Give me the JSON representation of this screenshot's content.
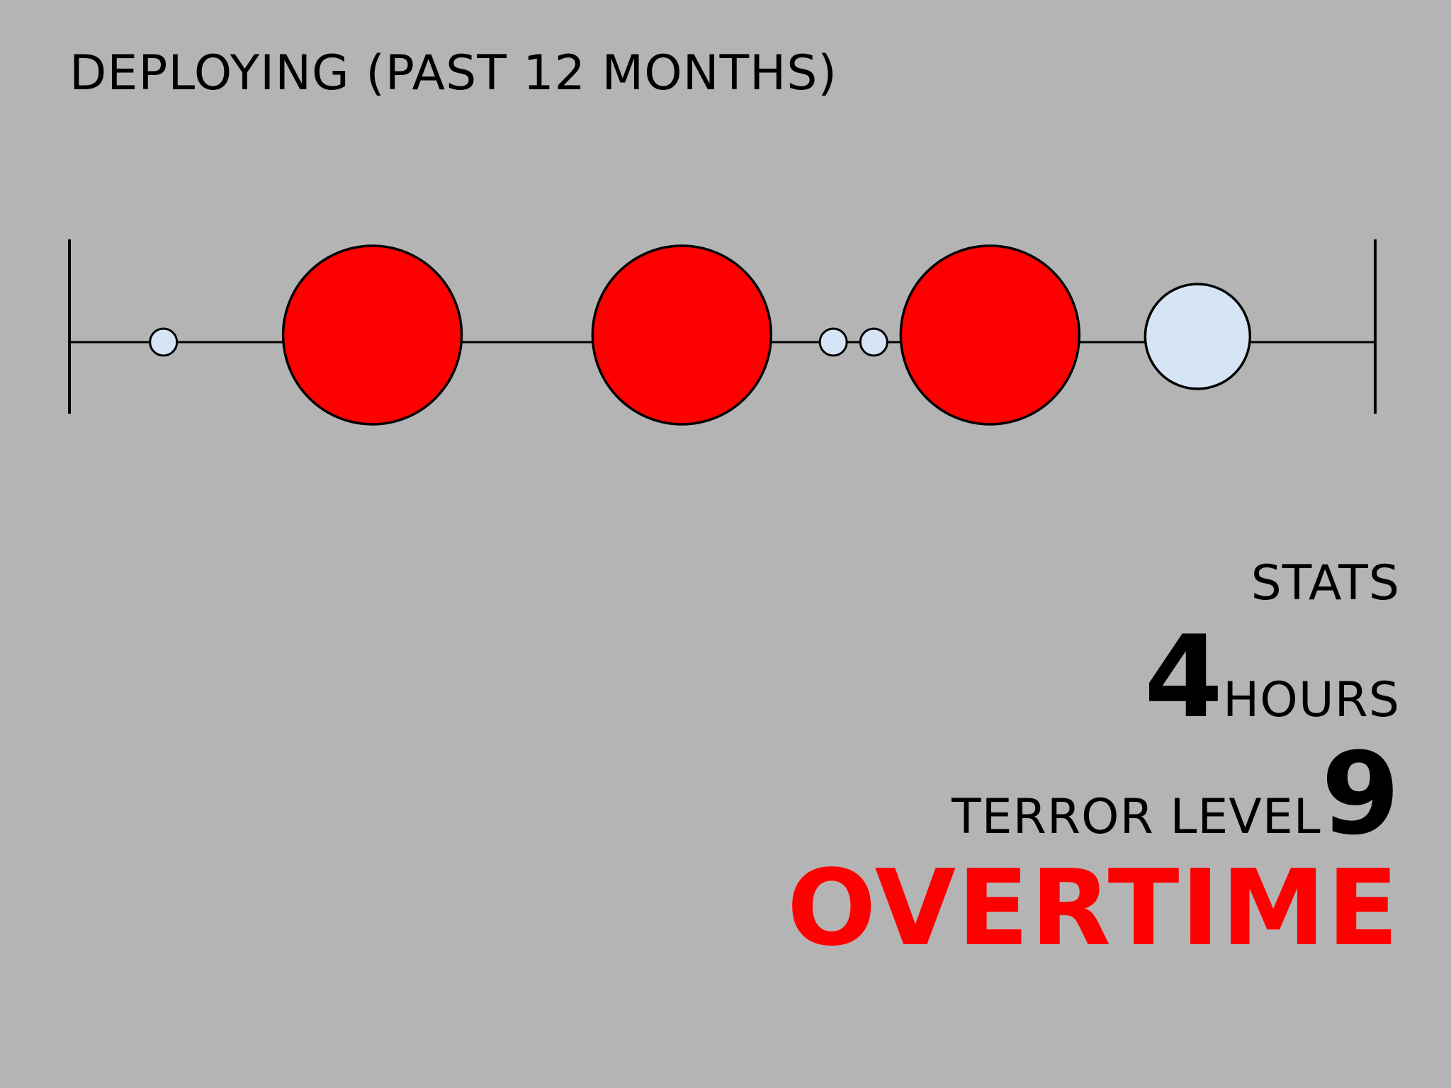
{
  "title": "DEPLOYING (PAST 12 MONTHS)",
  "timeline": {
    "events": [
      {
        "kind": "minor",
        "position": 0.072,
        "size": "small"
      },
      {
        "kind": "major",
        "position": 0.232,
        "size": "large"
      },
      {
        "kind": "major",
        "position": 0.469,
        "size": "large"
      },
      {
        "kind": "minor",
        "position": 0.585,
        "size": "small"
      },
      {
        "kind": "minor",
        "position": 0.616,
        "size": "small"
      },
      {
        "kind": "major",
        "position": 0.705,
        "size": "large"
      },
      {
        "kind": "minor",
        "position": 0.864,
        "size": "medium"
      }
    ],
    "colors": {
      "major": "#ff0000",
      "minor": "#d5e5f5",
      "line": "#000000"
    }
  },
  "stats": {
    "heading": "STATS",
    "hours_value": "4",
    "hours_unit": "HOURS",
    "terror_label": "TERROR LEVEL",
    "terror_value": "9",
    "status": "OVERTIME",
    "status_color": "#ff0000"
  }
}
